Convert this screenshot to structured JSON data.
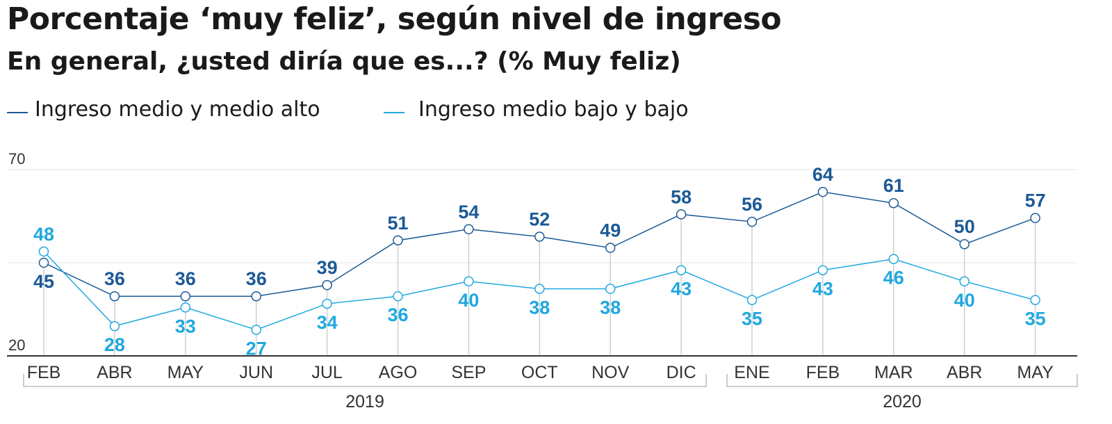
{
  "title": "Porcentaje ‘muy feliz’, según nivel de ingreso",
  "subtitle": "En general, ¿usted diría que es...? (% Muy feliz)",
  "colors": {
    "series_high": "#1b5a96",
    "series_low": "#1fa8df",
    "axis": "#333333",
    "grid": "#eeeeee",
    "dropline": "#d0d0d0",
    "tick_text": "#333333",
    "bracket": "#bbbbbb"
  },
  "chart_data": {
    "type": "line",
    "categories": [
      "FEB",
      "ABR",
      "MAY",
      "JUN",
      "JUL",
      "AGO",
      "SEP",
      "OCT",
      "NOV",
      "DIC",
      "ENE",
      "FEB",
      "MAR",
      "ABR",
      "MAY"
    ],
    "groups": [
      {
        "label": "2019",
        "from": 0,
        "to": 9
      },
      {
        "label": "2020",
        "from": 10,
        "to": 14
      }
    ],
    "ylim": [
      20,
      70
    ],
    "yticks": [
      "20",
      "70"
    ],
    "grid": true,
    "legend_position": "top-left",
    "series": [
      {
        "name": "Ingreso medio y medio alto",
        "color": "#1b5a96",
        "values": [
          45,
          36,
          36,
          36,
          39,
          51,
          54,
          52,
          49,
          58,
          56,
          64,
          61,
          50,
          57
        ],
        "labels": [
          "45",
          "36",
          "36",
          "36",
          "39",
          "51",
          "54",
          "52",
          "49",
          "58",
          "56",
          "64",
          "61",
          "50",
          "57"
        ]
      },
      {
        "name": "Ingreso medio bajo y bajo",
        "color": "#1fa8df",
        "values": [
          48,
          28,
          33,
          27,
          34,
          36,
          40,
          38,
          38,
          43,
          35,
          43,
          46,
          40,
          35
        ],
        "labels": [
          "48",
          "28",
          "33",
          "27",
          "34",
          "36",
          "40",
          "38",
          "38",
          "43",
          "35",
          "43",
          "46",
          "40",
          "35"
        ]
      }
    ]
  }
}
